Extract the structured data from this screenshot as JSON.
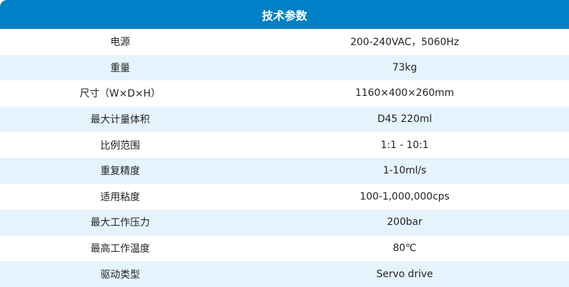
{
  "title": "技术参数",
  "rows": [
    {
      "label": "电源",
      "value": "200-240VAC，5060Hz"
    },
    {
      "label": "重量",
      "value": "73kg"
    },
    {
      "label": "尺寸（W×D×H）",
      "value": "1160×400×260mm"
    },
    {
      "label": "最大计量体积",
      "value": "D45 220ml"
    },
    {
      "label": "比例范围",
      "value": "1:1 - 10:1"
    },
    {
      "label": "重复精度",
      "value": "1-10ml/s"
    },
    {
      "label": "适用粘度",
      "value": "100-1,000,000cps"
    },
    {
      "label": "最大工作压力",
      "value": "200bar"
    },
    {
      "label": "最高工作温度",
      "value": "80℃"
    },
    {
      "label": "驱动类型",
      "value": "Servo drive"
    }
  ]
}
